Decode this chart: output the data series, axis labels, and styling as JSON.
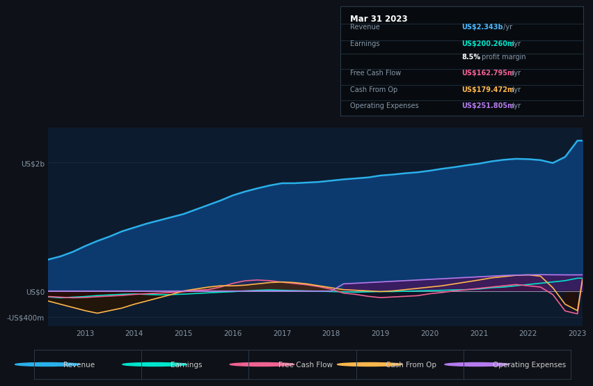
{
  "bg_color": "#0e1117",
  "plot_bg_color": "#0d1b2e",
  "grid_color": "#1e2d3d",
  "tooltip": {
    "title": "Mar 31 2023",
    "rows": [
      {
        "label": "Revenue",
        "value": "US$2.343b",
        "suffix": " /yr",
        "color": "#4db8ff"
      },
      {
        "label": "Earnings",
        "value": "US$200.260m",
        "suffix": " /yr",
        "color": "#00e5cc"
      },
      {
        "label": "",
        "value": "8.5%",
        "suffix": " profit margin",
        "color": "#ffffff"
      },
      {
        "label": "Free Cash Flow",
        "value": "US$162.795m",
        "suffix": " /yr",
        "color": "#f06292"
      },
      {
        "label": "Cash From Op",
        "value": "US$179.472m",
        "suffix": " /yr",
        "color": "#ffb74d"
      },
      {
        "label": "Operating Expenses",
        "value": "US$251.805m",
        "suffix": " /yr",
        "color": "#b57bee"
      }
    ]
  },
  "years": [
    2012.25,
    2012.5,
    2012.75,
    2013.0,
    2013.25,
    2013.5,
    2013.75,
    2014.0,
    2014.25,
    2014.5,
    2014.75,
    2015.0,
    2015.25,
    2015.5,
    2015.75,
    2016.0,
    2016.25,
    2016.5,
    2016.75,
    2017.0,
    2017.25,
    2017.5,
    2017.75,
    2018.0,
    2018.25,
    2018.5,
    2018.75,
    2019.0,
    2019.25,
    2019.5,
    2019.75,
    2020.0,
    2020.25,
    2020.5,
    2020.75,
    2021.0,
    2021.25,
    2021.5,
    2021.75,
    2022.0,
    2022.25,
    2022.5,
    2022.75,
    2023.0,
    2023.1
  ],
  "revenue": [
    490,
    540,
    610,
    700,
    780,
    850,
    930,
    990,
    1050,
    1100,
    1150,
    1200,
    1270,
    1340,
    1410,
    1490,
    1550,
    1600,
    1645,
    1680,
    1680,
    1690,
    1700,
    1720,
    1740,
    1755,
    1770,
    1800,
    1815,
    1835,
    1850,
    1875,
    1905,
    1930,
    1960,
    1985,
    2020,
    2045,
    2060,
    2055,
    2040,
    1995,
    2090,
    2343,
    2343
  ],
  "earnings": [
    -90,
    -105,
    -95,
    -85,
    -70,
    -60,
    -50,
    -45,
    -52,
    -58,
    -55,
    -48,
    -38,
    -28,
    -18,
    -10,
    2,
    12,
    18,
    12,
    7,
    2,
    -3,
    -8,
    -12,
    -18,
    -12,
    -8,
    -8,
    -3,
    2,
    7,
    12,
    18,
    22,
    32,
    52,
    62,
    82,
    102,
    122,
    142,
    162,
    200,
    200
  ],
  "free_cash_flow": [
    -85,
    -95,
    -105,
    -100,
    -88,
    -78,
    -68,
    -52,
    -42,
    -32,
    -22,
    -10,
    12,
    22,
    62,
    120,
    160,
    172,
    162,
    138,
    118,
    98,
    68,
    28,
    -32,
    -52,
    -82,
    -102,
    -92,
    -82,
    -72,
    -42,
    -22,
    2,
    22,
    42,
    62,
    82,
    102,
    82,
    62,
    -55,
    -310,
    -355,
    162
  ],
  "cash_from_op": [
    -155,
    -205,
    -255,
    -305,
    -345,
    -305,
    -265,
    -205,
    -155,
    -105,
    -55,
    2,
    32,
    62,
    82,
    82,
    92,
    112,
    132,
    142,
    132,
    112,
    82,
    52,
    22,
    12,
    2,
    -8,
    2,
    22,
    42,
    62,
    82,
    112,
    142,
    172,
    205,
    225,
    245,
    252,
    232,
    52,
    -205,
    -305,
    179
  ],
  "operating_expenses": [
    0,
    0,
    0,
    0,
    0,
    0,
    0,
    0,
    0,
    0,
    0,
    0,
    0,
    0,
    0,
    0,
    0,
    0,
    0,
    0,
    0,
    0,
    0,
    0,
    112,
    122,
    132,
    142,
    152,
    162,
    172,
    182,
    192,
    202,
    212,
    222,
    232,
    242,
    248,
    252,
    255,
    253,
    252,
    252,
    252
  ],
  "revenue_color": "#2ab0ea",
  "earnings_color": "#00e5cc",
  "free_cash_flow_color": "#f06292",
  "cash_from_op_color": "#ffb74d",
  "operating_expenses_color": "#b57bee",
  "ylim_lo": -550,
  "ylim_hi": 2550,
  "ytick_positions": [
    -400,
    0,
    2000
  ],
  "ytick_labels": [
    "-US$400m",
    "US$0",
    "US$2b"
  ],
  "xticks": [
    2013,
    2014,
    2015,
    2016,
    2017,
    2018,
    2019,
    2020,
    2021,
    2022,
    2023
  ],
  "legend_items": [
    {
      "label": "Revenue",
      "color": "#2ab0ea"
    },
    {
      "label": "Earnings",
      "color": "#00e5cc"
    },
    {
      "label": "Free Cash Flow",
      "color": "#f06292"
    },
    {
      "label": "Cash From Op",
      "color": "#ffb74d"
    },
    {
      "label": "Operating Expenses",
      "color": "#b57bee"
    }
  ]
}
